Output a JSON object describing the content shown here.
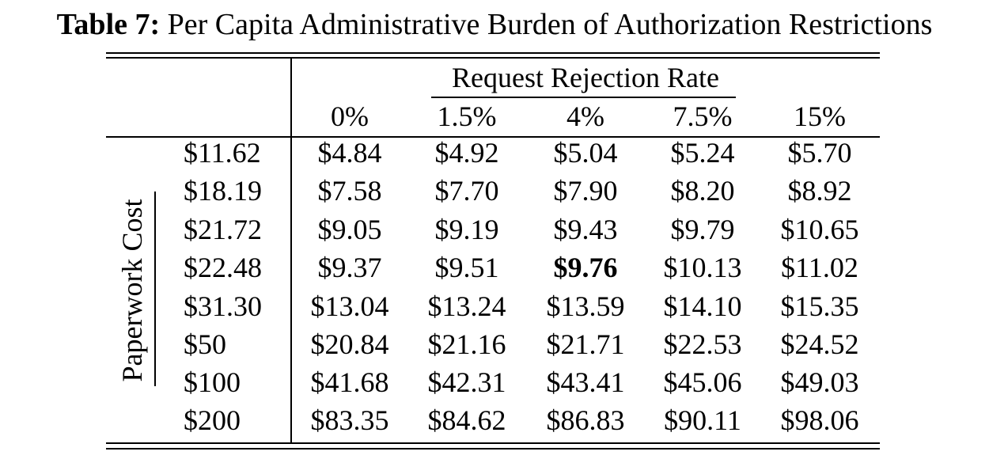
{
  "caption": {
    "label": "Table 7:",
    "title": "Per Capita Administrative Burden of Authorization Restrictions"
  },
  "table": {
    "column_group_header": "Request Rejection Rate",
    "columns": [
      "0%",
      "1.5%",
      "4%",
      "7.5%",
      "15%"
    ],
    "row_group_header": "Paperwork Cost",
    "rows": [
      {
        "label": "$11.62",
        "values": [
          "$4.84",
          "$4.92",
          "$5.04",
          "$5.24",
          "$5.70"
        ]
      },
      {
        "label": "$18.19",
        "values": [
          "$7.58",
          "$7.70",
          "$7.90",
          "$8.20",
          "$8.92"
        ]
      },
      {
        "label": "$21.72",
        "values": [
          "$9.05",
          "$9.19",
          "$9.43",
          "$9.79",
          "$10.65"
        ]
      },
      {
        "label": "$22.48",
        "values": [
          "$9.37",
          "$9.51",
          "$9.76",
          "$10.13",
          "$11.02"
        ]
      },
      {
        "label": "$31.30",
        "values": [
          "$13.04",
          "$13.24",
          "$13.59",
          "$14.10",
          "$15.35"
        ]
      },
      {
        "label": "$50",
        "values": [
          "$20.84",
          "$21.16",
          "$21.71",
          "$22.53",
          "$24.52"
        ]
      },
      {
        "label": "$100",
        "values": [
          "$41.68",
          "$42.31",
          "$43.41",
          "$45.06",
          "$49.03"
        ]
      },
      {
        "label": "$200",
        "values": [
          "$83.35",
          "$84.62",
          "$86.83",
          "$90.11",
          "$98.06"
        ]
      }
    ],
    "highlighted_cell": {
      "row": 3,
      "col": 2
    }
  }
}
